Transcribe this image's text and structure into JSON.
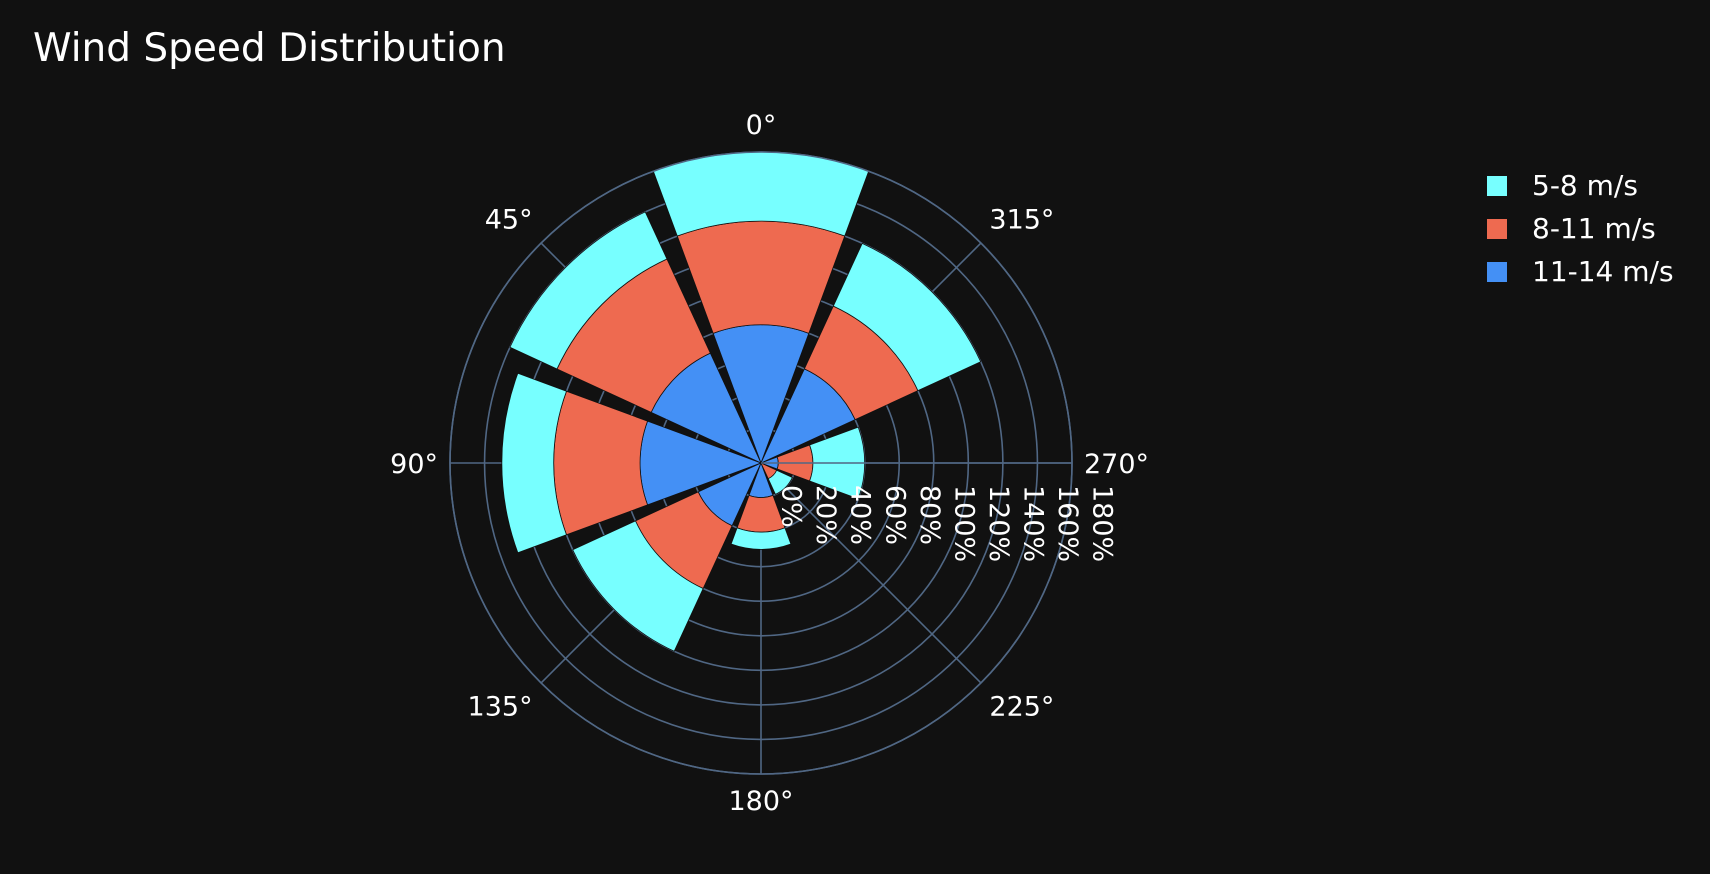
{
  "chart_data": {
    "type": "barpolar",
    "title": "Wind Speed Distribution",
    "theta": [
      0,
      45,
      90,
      135,
      180,
      225,
      270,
      315
    ],
    "angular_axis": {
      "direction": "counterclockwise",
      "rotation": 90,
      "tick_labels": [
        "0°",
        "45°",
        "90°",
        "135°",
        "180°",
        "225°",
        "270°",
        "315°"
      ]
    },
    "radial_axis": {
      "range": [
        0,
        180
      ],
      "tick_values": [
        0,
        20,
        40,
        60,
        80,
        100,
        120,
        140,
        160,
        180
      ],
      "tick_labels": [
        "0%",
        "20%",
        "40%",
        "60%",
        "80%",
        "100%",
        "120%",
        "140%",
        "160%",
        "180%"
      ]
    },
    "series": [
      {
        "name": "11-14 m/s",
        "color": "#4490f5",
        "values": [
          80,
          70,
          70,
          40,
          20,
          0,
          10,
          60
        ]
      },
      {
        "name": "8-11 m/s",
        "color": "#ee6a50",
        "values": [
          60,
          60,
          50,
          40,
          20,
          10,
          20,
          40
        ]
      },
      {
        "name": "5-8 m/s",
        "color": "#77ffff",
        "values": [
          40,
          30,
          30,
          40,
          10,
          10,
          30,
          40
        ]
      }
    ],
    "legend_position": "top-right",
    "grid": true
  }
}
